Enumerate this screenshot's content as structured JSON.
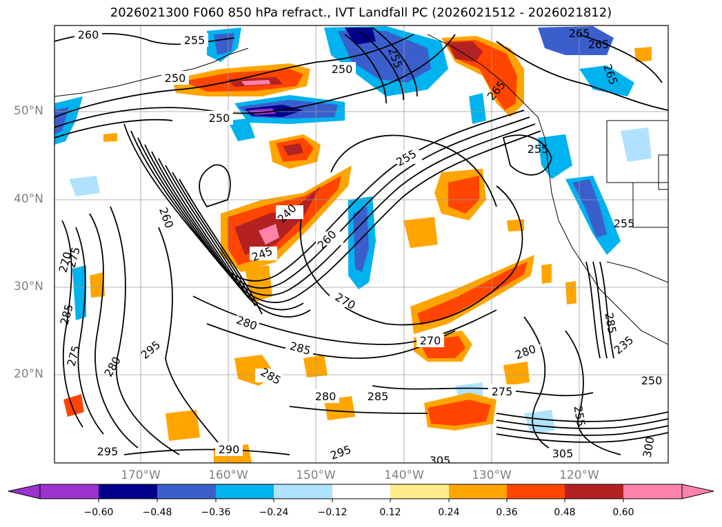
{
  "title": "2026021300 F060 850 hPa refract., IVT Landfall PC (2026021512 - 2026021812)",
  "latitude_labels": [
    "50°N",
    "40°N",
    "30°N",
    "20°N"
  ],
  "longitude_labels": [
    "170°W",
    "160°W",
    "150°W",
    "140°W",
    "130°W",
    "120°W"
  ],
  "contour_labels": {
    "c260a": "260",
    "c255a": "255",
    "c250a": "250",
    "c250b": "250",
    "c250c": "250",
    "c255b": "255",
    "c265a": "265",
    "c265b": "265",
    "c265c": "265",
    "c255c": "255",
    "c255d": "255",
    "c240": "240",
    "c245": "245",
    "c260b": "260",
    "c260c": "260",
    "c265d": "265",
    "c270a": "270",
    "c270b": "270",
    "c270c": "270",
    "c275a": "275",
    "c275b": "275",
    "c275c": "275",
    "c280a": "280",
    "c280b": "280",
    "c280c": "280",
    "c280d": "280",
    "c285a": "285",
    "c285b": "285",
    "c285c": "285",
    "c285d": "285",
    "c295a": "295",
    "c295b": "295",
    "c295c": "295",
    "c290": "290",
    "c305a": "305",
    "c305b": "305",
    "c300": "300",
    "c250d": "250",
    "c255e": "255",
    "c255f": "255",
    "c235": "235",
    "c285e": "285"
  },
  "colorbar": {
    "ticks": [
      "−0.60",
      "−0.48",
      "−0.36",
      "−0.24",
      "−0.12",
      "0.12",
      "0.24",
      "0.36",
      "0.48",
      "0.60"
    ],
    "colors": [
      "#9a32cd",
      "#00008b",
      "#3a5fcd",
      "#00b2ee",
      "#b0e2ff",
      "#ffffff",
      "#ffec8b",
      "#ffa500",
      "#ff4500",
      "#b22222",
      "#ff82ab"
    ]
  }
}
